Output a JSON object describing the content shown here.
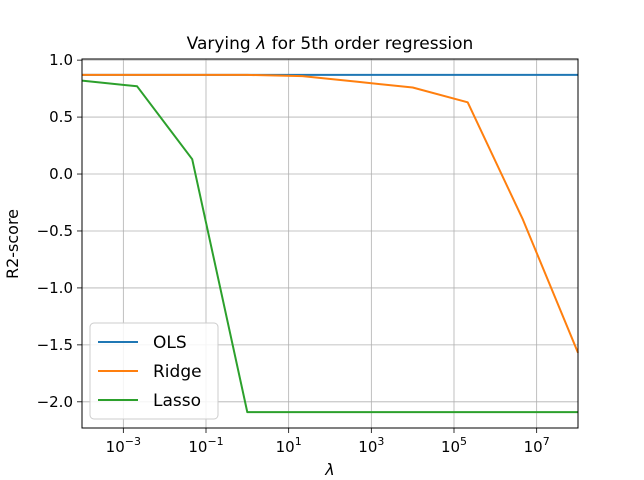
{
  "chart_data": {
    "type": "line",
    "title_prefix": "Varying ",
    "title_symbol": "λ",
    "title_suffix": " for 5th order regression",
    "xlabel": "λ",
    "ylabel": "R2-score",
    "xscale": "log",
    "xlim": [
      0.0001,
      100000000
    ],
    "ylim": [
      -2.23,
      1.01
    ],
    "grid": true,
    "legend_position": "lower-left",
    "xticks": [
      {
        "base": "10",
        "exp": "−3",
        "value": 0.001
      },
      {
        "base": "10",
        "exp": "−1",
        "value": 0.1
      },
      {
        "base": "10",
        "exp": "1",
        "value": 10
      },
      {
        "base": "10",
        "exp": "3",
        "value": 1000
      },
      {
        "base": "10",
        "exp": "5",
        "value": 100000
      },
      {
        "base": "10",
        "exp": "7",
        "value": 10000000
      }
    ],
    "yticks": [
      {
        "label": "1.0",
        "value": 1.0
      },
      {
        "label": "0.5",
        "value": 0.5
      },
      {
        "label": "0.0",
        "value": 0.0
      },
      {
        "label": "−0.5",
        "value": -0.5
      },
      {
        "label": "−1.0",
        "value": -1.0
      },
      {
        "label": "−1.5",
        "value": -1.5
      },
      {
        "label": "−2.0",
        "value": -2.0
      }
    ],
    "series": [
      {
        "name": "OLS",
        "color": "#1f77b4",
        "x": [
          0.0001,
          100000000
        ],
        "y": [
          0.87,
          0.87
        ]
      },
      {
        "name": "Ridge",
        "color": "#ff7f0e",
        "x": [
          0.0001,
          0.00215,
          0.0464,
          1,
          21.5,
          464,
          10000,
          215000,
          4640000,
          100000000
        ],
        "y": [
          0.87,
          0.87,
          0.87,
          0.87,
          0.86,
          0.81,
          0.76,
          0.63,
          -0.4,
          -1.57
        ]
      },
      {
        "name": "Lasso",
        "color": "#2ca02c",
        "x": [
          0.0001,
          0.00215,
          0.0464,
          1,
          21.5,
          464,
          10000,
          215000,
          4640000,
          100000000
        ],
        "y": [
          0.82,
          0.77,
          0.13,
          -2.09,
          -2.09,
          -2.09,
          -2.09,
          -2.09,
          -2.09,
          -2.09
        ]
      }
    ]
  }
}
